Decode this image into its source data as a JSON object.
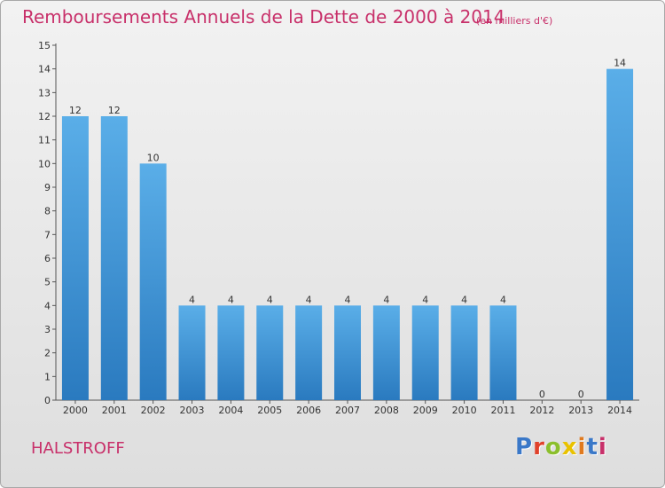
{
  "header": {
    "title": "Remboursements Annuels de la Dette de 2000 à 2014",
    "unit": "(en milliers d'€)"
  },
  "footer": {
    "commune": "HALSTROFF",
    "logo": "Proxiti"
  },
  "colors": {
    "accent": "#c8306a",
    "bar_top": "#5aaee8",
    "bar_bottom": "#2a7abf",
    "logo_letters": [
      "#3a78c8",
      "#e0412b",
      "#8bbf2c",
      "#e9c200",
      "#e07a1f",
      "#3a78c8",
      "#c8306a"
    ]
  },
  "chart_data": {
    "type": "bar",
    "categories": [
      "2000",
      "2001",
      "2002",
      "2003",
      "2004",
      "2005",
      "2006",
      "2007",
      "2008",
      "2009",
      "2010",
      "2011",
      "2012",
      "2013",
      "2014"
    ],
    "values": [
      12,
      12,
      10,
      4,
      4,
      4,
      4,
      4,
      4,
      4,
      4,
      4,
      0,
      0,
      14
    ],
    "title": "Remboursements Annuels de la Dette de 2000 à 2014",
    "ylim": [
      0,
      15
    ],
    "yticks": [
      0,
      1,
      2,
      3,
      4,
      5,
      6,
      7,
      8,
      9,
      10,
      11,
      12,
      13,
      14,
      15
    ],
    "grid": false,
    "data_labels": true
  }
}
